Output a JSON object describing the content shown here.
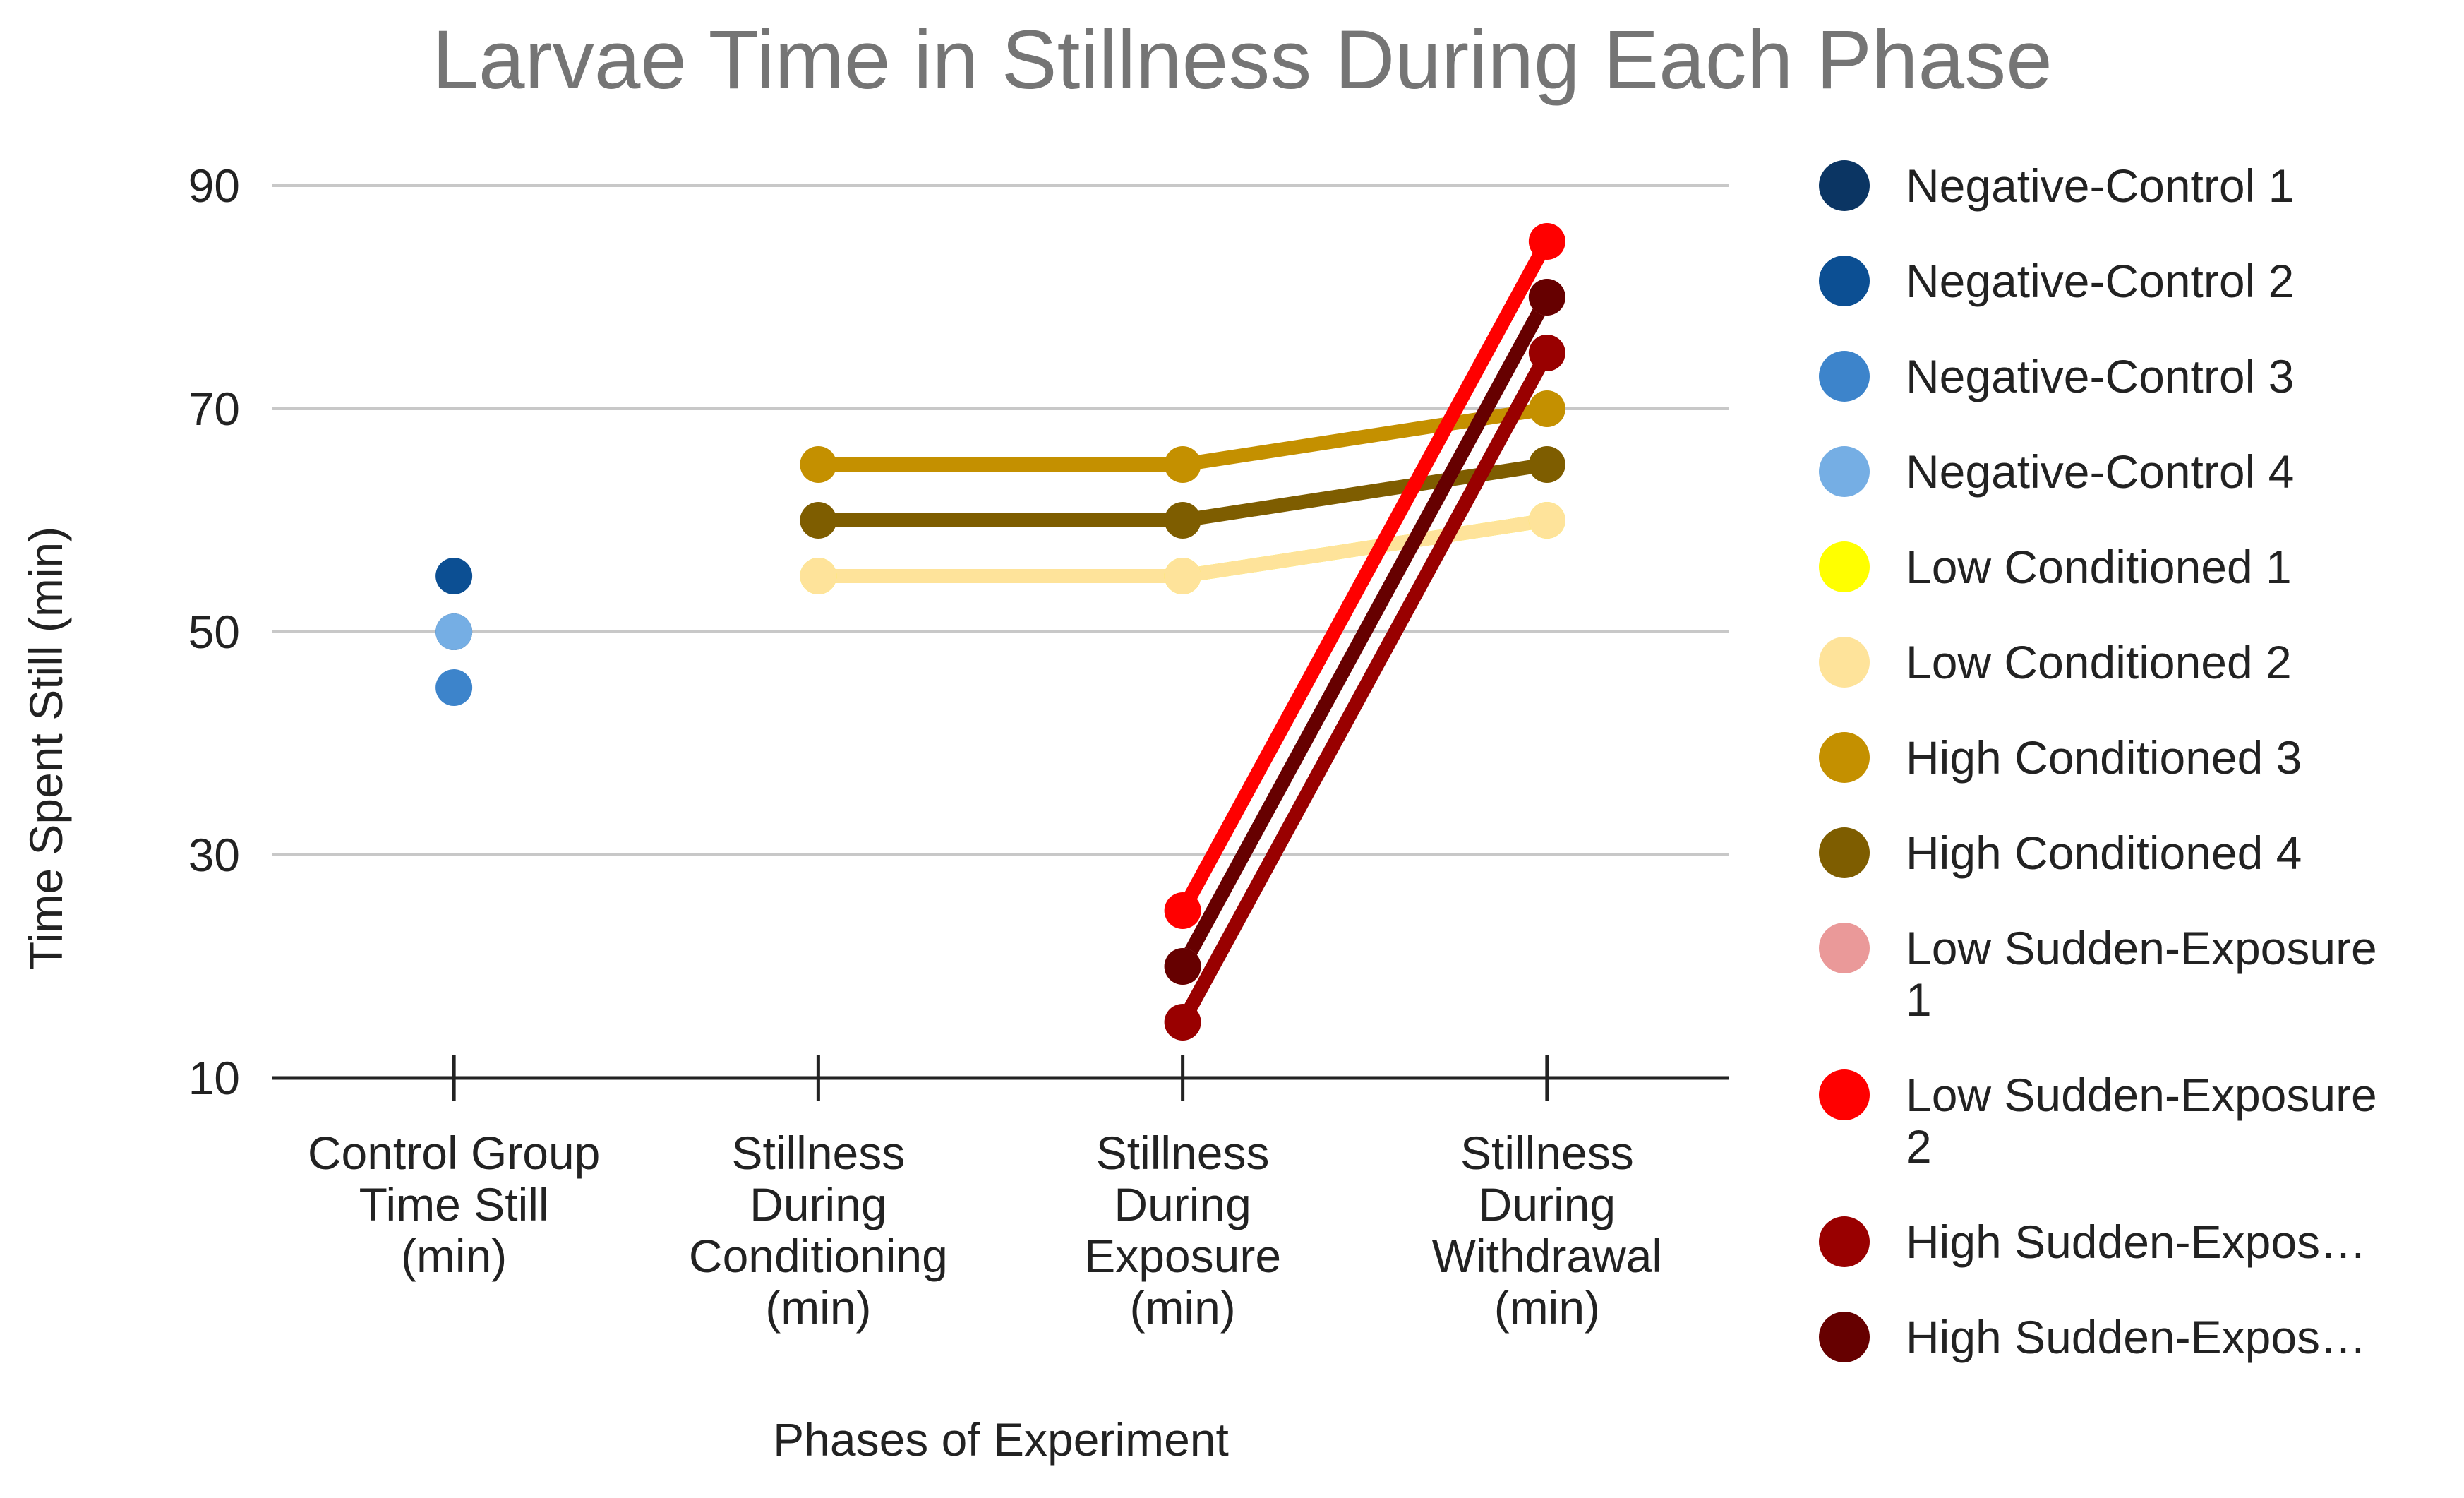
{
  "chart_data": {
    "type": "line",
    "title": "Larvae Time in Stillness During Each Phase",
    "xlabel": "Phases of Experiment",
    "ylabel": "Time Spent Still (min)",
    "ylim": [
      10,
      90
    ],
    "yticks": [
      10,
      30,
      50,
      70,
      90
    ],
    "grid": true,
    "legend_position": "right",
    "categories": [
      [
        "Control Group",
        "Time Still",
        "(min)"
      ],
      [
        "Stillness",
        "During",
        "Conditioning",
        "(min)"
      ],
      [
        "Stillness",
        "During",
        "Exposure",
        "(min)"
      ],
      [
        "Stillness",
        "During",
        "Withdrawal",
        "(min)"
      ]
    ],
    "series": [
      {
        "name": "Negative-Control 1",
        "legend_lines": [
          "Negative-Control 1"
        ],
        "color": "#0b3563",
        "values": [
          50,
          null,
          null,
          null
        ]
      },
      {
        "name": "Negative-Control 2",
        "legend_lines": [
          "Negative-Control 2"
        ],
        "color": "#0c4f93",
        "values": [
          55,
          null,
          null,
          null
        ]
      },
      {
        "name": "Negative-Control 3",
        "legend_lines": [
          "Negative-Control 3"
        ],
        "color": "#3d84cb",
        "values": [
          45,
          null,
          null,
          null
        ]
      },
      {
        "name": "Negative-Control 4",
        "legend_lines": [
          "Negative-Control 4"
        ],
        "color": "#75aee4",
        "values": [
          50,
          null,
          null,
          null
        ]
      },
      {
        "name": "Low Conditioned 1",
        "legend_lines": [
          "Low Conditioned 1"
        ],
        "color": "#ffff00",
        "values": [
          null,
          55,
          55,
          60
        ]
      },
      {
        "name": "Low Conditioned 2",
        "legend_lines": [
          "Low Conditioned 2"
        ],
        "color": "#fee39a",
        "values": [
          null,
          55,
          55,
          60
        ]
      },
      {
        "name": "High Conditioned 3",
        "legend_lines": [
          "High Conditioned 3"
        ],
        "color": "#c49000",
        "values": [
          null,
          65,
          65,
          70
        ]
      },
      {
        "name": "High Conditioned 4",
        "legend_lines": [
          "High Conditioned 4"
        ],
        "color": "#7e5d00",
        "values": [
          null,
          60,
          60,
          65
        ]
      },
      {
        "name": "Low Sudden-Exposure 1",
        "legend_lines": [
          "Low Sudden-Exposure",
          "1"
        ],
        "color": "#ea9999",
        "values": [
          null,
          null,
          20,
          80
        ]
      },
      {
        "name": "Low Sudden-Exposure 2",
        "legend_lines": [
          "Low Sudden-Exposure",
          "2"
        ],
        "color": "#ff0000",
        "values": [
          null,
          null,
          25,
          85
        ]
      },
      {
        "name": "High Sudden-Expos…",
        "legend_lines": [
          "High Sudden-Expos…"
        ],
        "color": "#990000",
        "values": [
          null,
          null,
          15,
          75
        ]
      },
      {
        "name": "High Sudden-Expos…",
        "legend_lines": [
          "High Sudden-Expos…"
        ],
        "color": "#660000",
        "values": [
          null,
          null,
          20,
          80
        ]
      }
    ]
  }
}
